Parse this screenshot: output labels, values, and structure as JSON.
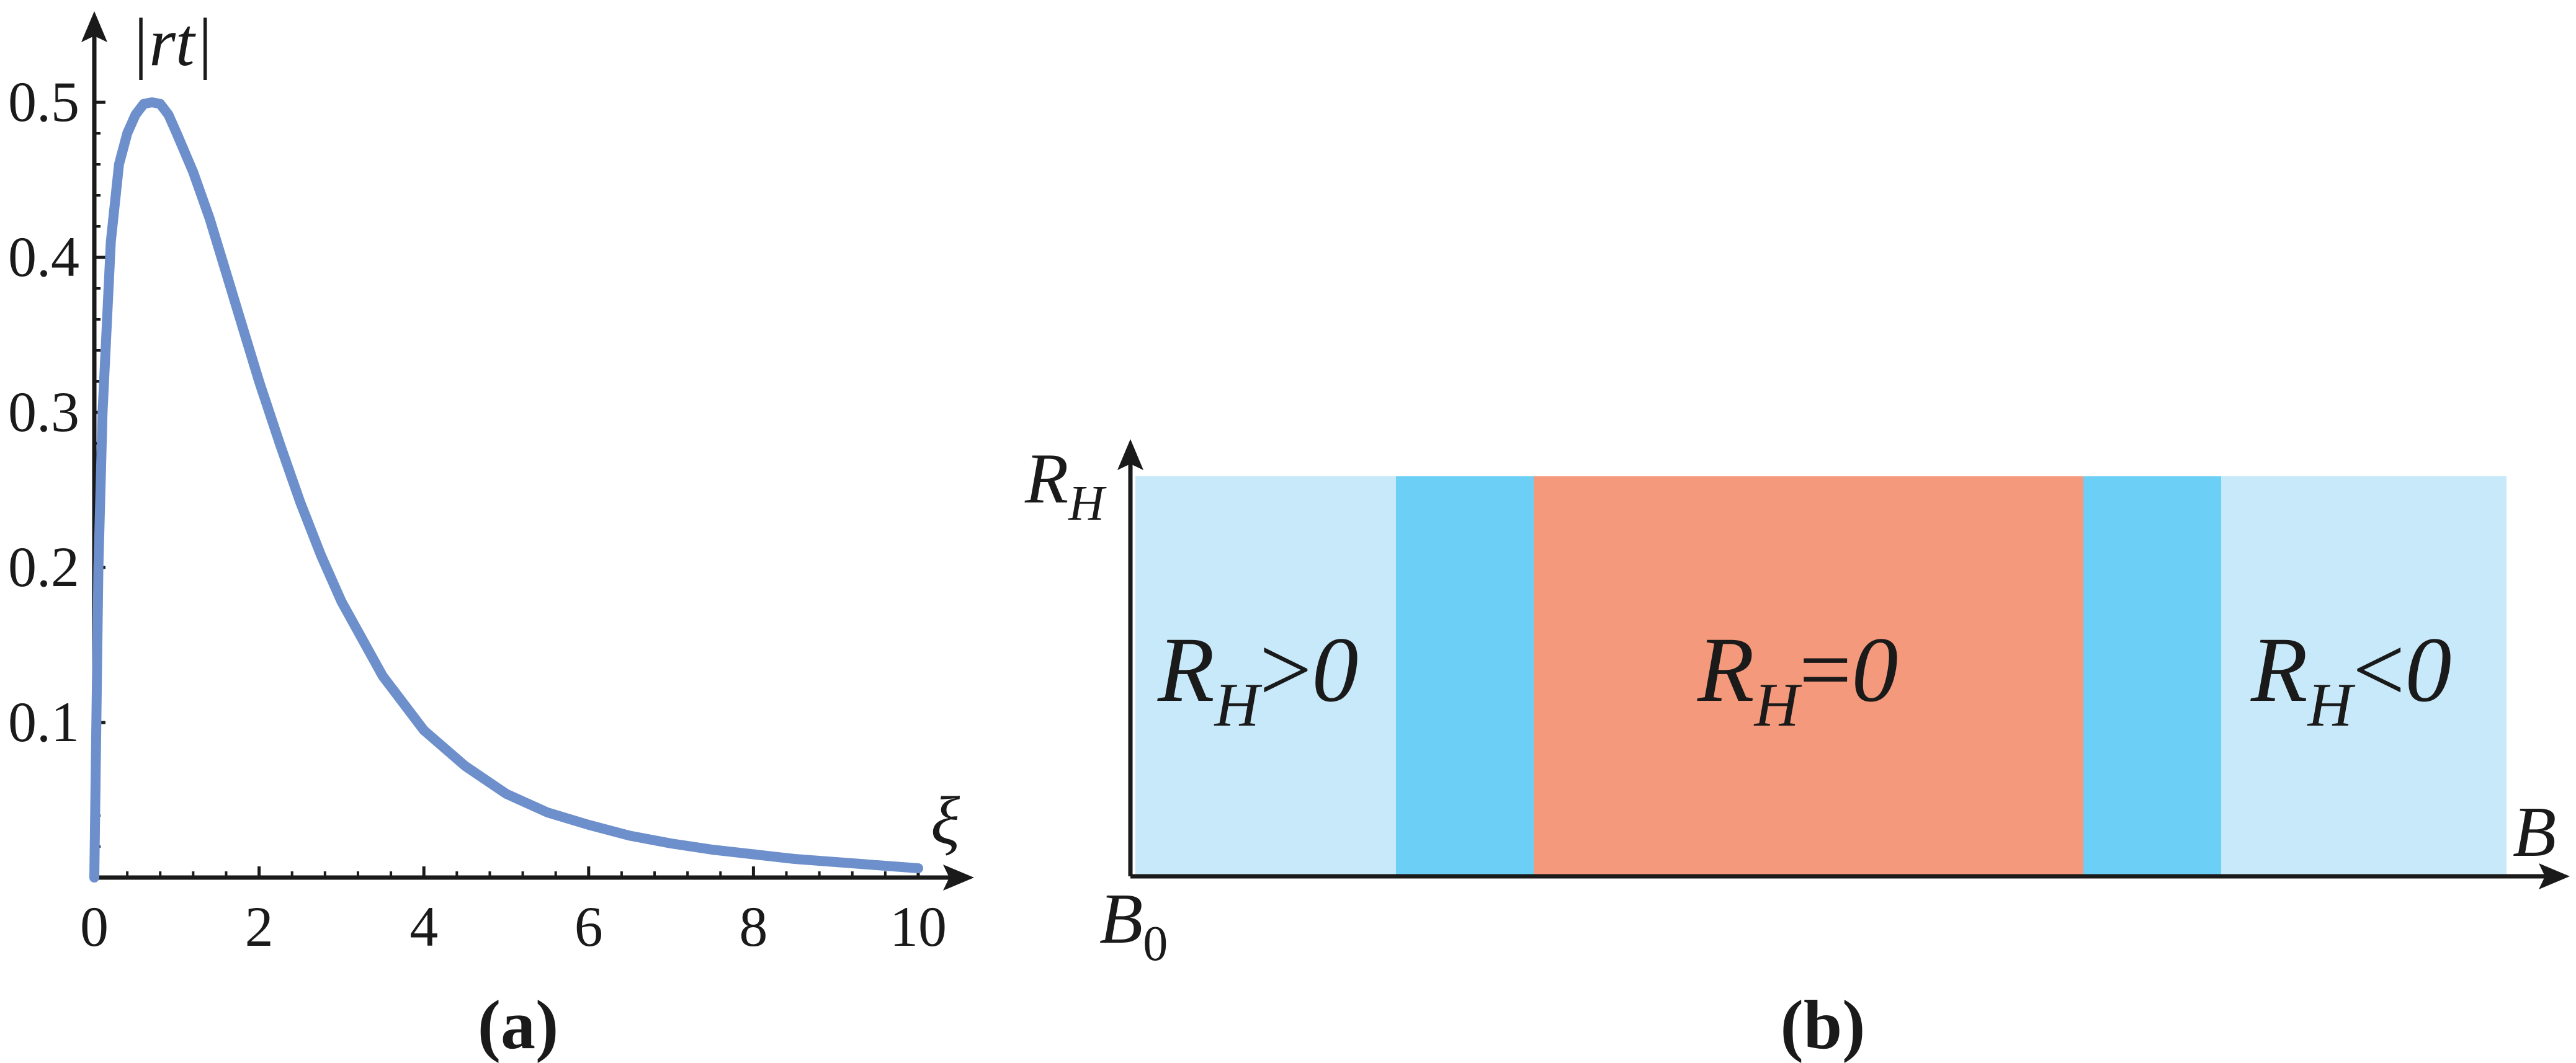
{
  "chart_data": [
    {
      "type": "line",
      "panel_label": "(a)",
      "xlabel": "ξ",
      "ylabel": "|rt|",
      "xlim": [
        0,
        10
      ],
      "ylim": [
        0,
        0.5
      ],
      "x_ticks": [
        0,
        2,
        4,
        6,
        8,
        10
      ],
      "x_tick_labels": [
        "0",
        "2",
        "4",
        "6",
        "8",
        "10"
      ],
      "y_ticks": [
        0.1,
        0.2,
        0.3,
        0.4,
        0.5
      ],
      "y_tick_labels": [
        "0.1",
        "0.2",
        "0.3",
        "0.4",
        "0.5"
      ],
      "grid": false,
      "line_color": "#6d8fcb",
      "series": [
        {
          "x": [
            0,
            0.05,
            0.1,
            0.2,
            0.3,
            0.4,
            0.5,
            0.6,
            0.7,
            0.8,
            0.9,
            1.0,
            1.2,
            1.4,
            1.6,
            1.8,
            2.0,
            2.25,
            2.5,
            2.75,
            3.0,
            3.5,
            4.0,
            4.5,
            5.0,
            5.5,
            6.0,
            6.5,
            7.0,
            7.5,
            8.0,
            8.5,
            9.0,
            9.5,
            10.0
          ],
          "y": [
            0,
            0.2,
            0.3,
            0.41,
            0.46,
            0.48,
            0.492,
            0.499,
            0.5,
            0.499,
            0.492,
            0.48,
            0.455,
            0.425,
            0.39,
            0.355,
            0.32,
            0.28,
            0.242,
            0.208,
            0.178,
            0.13,
            0.095,
            0.072,
            0.054,
            0.042,
            0.034,
            0.027,
            0.022,
            0.018,
            0.015,
            0.012,
            0.01,
            0.008,
            0.006
          ]
        }
      ]
    },
    {
      "type": "diagram",
      "panel_label": "(b)",
      "xlabel": "B",
      "ylabel_main": "R",
      "ylabel_sub": "H",
      "origin_main": "B",
      "origin_sub": "0",
      "regions": [
        {
          "color": "#c8e9f9"
        },
        {
          "color": "#6ccff5"
        },
        {
          "color": "#f4997b"
        },
        {
          "color": "#6ccff5"
        },
        {
          "color": "#c8e9f9"
        }
      ],
      "region_labels": [
        {
          "main": "R",
          "sub": "H",
          "rel": ">",
          "value": "0"
        },
        {
          "main": "R",
          "sub": "H",
          "rel": "=",
          "value": "0"
        },
        {
          "main": "R",
          "sub": "H",
          "rel": "<",
          "value": "0"
        }
      ]
    }
  ]
}
